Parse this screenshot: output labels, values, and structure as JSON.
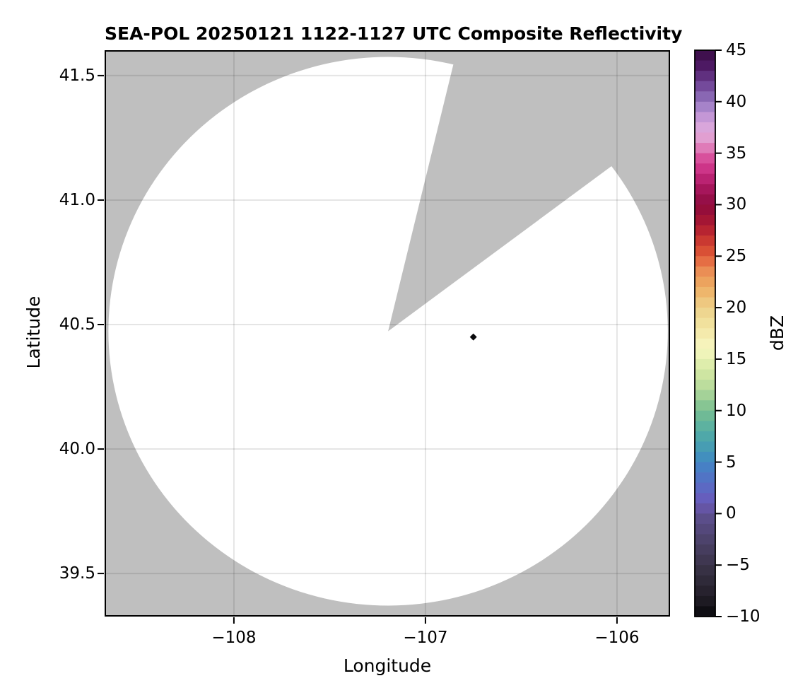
{
  "title": "SEA-POL 20250121 1122-1127 UTC Composite Reflectivity",
  "axes": {
    "xlabel": "Longitude",
    "ylabel": "Latitude",
    "x_ticks": [
      {
        "value": -108,
        "label": "−108"
      },
      {
        "value": -107,
        "label": "−107"
      },
      {
        "value": -106,
        "label": "−106"
      }
    ],
    "y_ticks": [
      {
        "value": 41.5,
        "label": "41.5"
      },
      {
        "value": 41.0,
        "label": "41.0"
      },
      {
        "value": 40.5,
        "label": "40.5"
      },
      {
        "value": 40.0,
        "label": "40.0"
      },
      {
        "value": 39.5,
        "label": "39.5"
      }
    ]
  },
  "colorbar": {
    "label": "dBZ",
    "min": -10,
    "max": 45,
    "ticks": [
      {
        "value": 45,
        "label": "45"
      },
      {
        "value": 40,
        "label": "40"
      },
      {
        "value": 35,
        "label": "35"
      },
      {
        "value": 30,
        "label": "30"
      },
      {
        "value": 25,
        "label": "25"
      },
      {
        "value": 20,
        "label": "20"
      },
      {
        "value": 15,
        "label": "15"
      },
      {
        "value": 10,
        "label": "10"
      },
      {
        "value": 5,
        "label": "5"
      },
      {
        "value": 0,
        "label": "0"
      },
      {
        "value": -5,
        "label": "−5"
      },
      {
        "value": -10,
        "label": "−10"
      }
    ]
  },
  "chart_data": {
    "type": "heatmap",
    "subtype": "radar-ppi-composite-reflectivity",
    "title": "SEA-POL 20250121 1122-1127 UTC Composite Reflectivity",
    "xlabel": "Longitude",
    "ylabel": "Latitude",
    "xlim": [
      -108.675,
      -105.723
    ],
    "ylim": [
      39.327,
      41.602
    ],
    "x_ticks": [
      -108,
      -107,
      -106
    ],
    "y_ticks": [
      41.5,
      41.0,
      40.5,
      40.0,
      39.5
    ],
    "grid": true,
    "grid_color": "rgba(0,0,0,0.1)",
    "no_data_fill": "#bfbfbf",
    "coverage_fill": "#ffffff",
    "colorbar": {
      "label": "dBZ",
      "min": -10,
      "max": 45,
      "tick_interval": 5,
      "discrete_step": 1
    },
    "radar_coverage": {
      "center_lon": -107.195,
      "center_lat": 40.473,
      "radius_deg_lon": 1.46,
      "radius_deg_lat": 1.102,
      "radius_km": 120,
      "missing_sector_azimuth_start_deg": 13.5,
      "missing_sector_azimuth_end_deg": 53
    },
    "echoes": [
      {
        "lon": -106.75,
        "lat": 40.45,
        "dbz_approx": -10,
        "marker": "diamond",
        "color": "#0a0a0d"
      }
    ],
    "colormap_hint": "ChaseSpectral-like, discrete 1 dBZ bands",
    "colormap_stops": [
      [
        -10,
        "#070609"
      ],
      [
        -9,
        "#17151c"
      ],
      [
        -8,
        "#221e28"
      ],
      [
        -7,
        "#2b2633"
      ],
      [
        -6,
        "#332d3e"
      ],
      [
        -5,
        "#3b344a"
      ],
      [
        -4,
        "#423a57"
      ],
      [
        -3,
        "#494064"
      ],
      [
        -2,
        "#504573"
      ],
      [
        -1,
        "#574b82"
      ],
      [
        0,
        "#5e5191"
      ],
      [
        1,
        "#6b58b9"
      ],
      [
        2,
        "#6163c1"
      ],
      [
        3,
        "#566ec4"
      ],
      [
        4,
        "#4c79c6"
      ],
      [
        5,
        "#4187c3"
      ],
      [
        6,
        "#4397b8"
      ],
      [
        7,
        "#4aa2ae"
      ],
      [
        8,
        "#54ada4"
      ],
      [
        9,
        "#66b69b"
      ],
      [
        10,
        "#78be91"
      ],
      [
        11,
        "#95cb95"
      ],
      [
        12,
        "#b2d89a"
      ],
      [
        13,
        "#c6e19f"
      ],
      [
        14,
        "#d6e9a5"
      ],
      [
        15,
        "#e6f0b2"
      ],
      [
        16,
        "#f7f7c0"
      ],
      [
        17,
        "#f5efb5"
      ],
      [
        18,
        "#f2e5a3"
      ],
      [
        19,
        "#efdc96"
      ],
      [
        20,
        "#edd089"
      ],
      [
        21,
        "#eec076"
      ],
      [
        22,
        "#edab62"
      ],
      [
        23,
        "#eb9a59"
      ],
      [
        24,
        "#e98250"
      ],
      [
        25,
        "#e05a38"
      ],
      [
        26,
        "#d24532"
      ],
      [
        27,
        "#c22d2f"
      ],
      [
        28,
        "#ab1a32"
      ],
      [
        29,
        "#9c1136"
      ],
      [
        30,
        "#8e0b3e"
      ],
      [
        31,
        "#9d1252"
      ],
      [
        32,
        "#ae1a64"
      ],
      [
        33,
        "#c62c80"
      ],
      [
        34,
        "#d43d90"
      ],
      [
        35,
        "#db62a8"
      ],
      [
        36,
        "#e293c8"
      ],
      [
        37,
        "#dfabda"
      ],
      [
        38,
        "#d2a0dc"
      ],
      [
        39,
        "#b58ed0"
      ],
      [
        40,
        "#9678c2"
      ],
      [
        41,
        "#7c55a4"
      ],
      [
        42,
        "#6b3f92"
      ],
      [
        43,
        "#54206b"
      ],
      [
        44,
        "#45125a"
      ],
      [
        45,
        "#380e42"
      ]
    ]
  }
}
